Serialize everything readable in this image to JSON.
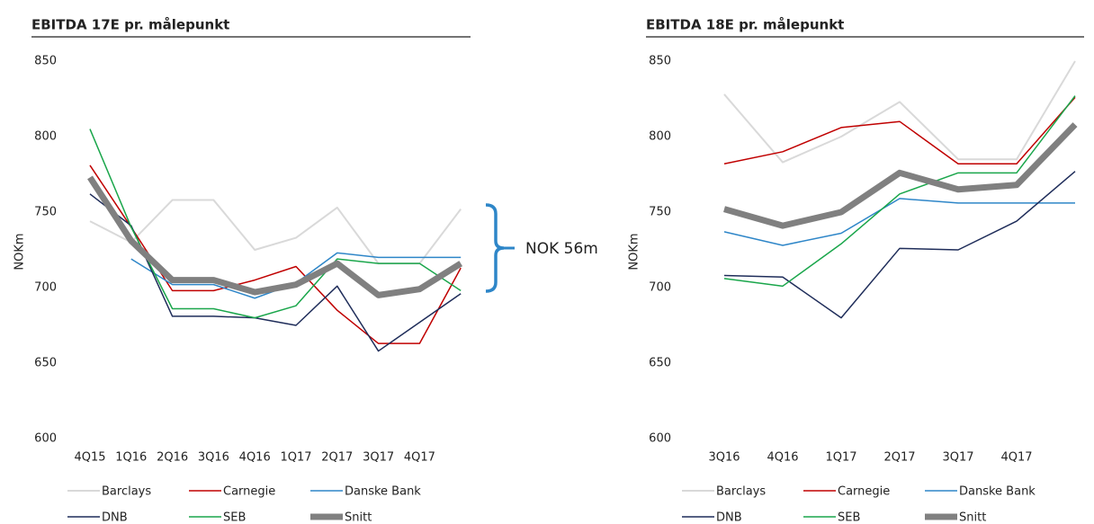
{
  "chart_data": [
    {
      "type": "line",
      "title": "EBITDA 17E pr. målepunkt",
      "y_label": "NOKm",
      "annotation": "NOK 56m",
      "categories": [
        "4Q15",
        "1Q16",
        "2Q16",
        "3Q16",
        "4Q16",
        "1Q17",
        "2Q17",
        "3Q17",
        "4Q17",
        null
      ],
      "ylim": [
        600,
        850
      ],
      "yticks": [
        600,
        650,
        700,
        750,
        800,
        850
      ],
      "grid": false,
      "series": [
        {
          "name": "Barclays",
          "color": "#d9d9d9",
          "width": 2,
          "values": [
            744,
            730,
            758,
            758,
            725,
            733,
            753,
            716,
            716,
            752
          ]
        },
        {
          "name": "Carnegie",
          "color": "#c00000",
          "width": 1.5,
          "values": [
            781,
            740,
            698,
            698,
            705,
            714,
            685,
            663,
            663,
            713
          ]
        },
        {
          "name": "Danske Bank",
          "color": "#2e86c8",
          "width": 1.5,
          "values": [
            null,
            719,
            702,
            702,
            693,
            703,
            723,
            720,
            720,
            720
          ]
        },
        {
          "name": "DNB",
          "color": "#1f2d5a",
          "width": 1.5,
          "values": [
            762,
            741,
            681,
            681,
            680,
            675,
            701,
            658,
            677,
            696
          ]
        },
        {
          "name": "SEB",
          "color": "#1aa64b",
          "width": 1.5,
          "values": [
            805,
            740,
            686,
            686,
            680,
            688,
            719,
            716,
            716,
            698
          ]
        },
        {
          "name": "Snitt",
          "color": "#808080",
          "width": 7,
          "values": [
            773,
            731,
            705,
            705,
            697,
            702,
            716,
            695,
            699,
            716
          ]
        }
      ]
    },
    {
      "type": "line",
      "title": "EBITDA 18E pr. målepunkt",
      "y_label": "NOKm",
      "categories": [
        "3Q16",
        "4Q16",
        "1Q17",
        "2Q17",
        "3Q17",
        "4Q17",
        null
      ],
      "ylim": [
        600,
        850
      ],
      "yticks": [
        600,
        650,
        700,
        750,
        800,
        850
      ],
      "grid": false,
      "series": [
        {
          "name": "Barclays",
          "color": "#d9d9d9",
          "width": 2,
          "values": [
            828,
            783,
            800,
            823,
            785,
            785,
            850
          ]
        },
        {
          "name": "Carnegie",
          "color": "#c00000",
          "width": 1.5,
          "values": [
            782,
            790,
            806,
            810,
            782,
            782,
            826
          ]
        },
        {
          "name": "Danske Bank",
          "color": "#2e86c8",
          "width": 1.5,
          "values": [
            737,
            728,
            736,
            759,
            756,
            756,
            756
          ]
        },
        {
          "name": "DNB",
          "color": "#1f2d5a",
          "width": 1.5,
          "values": [
            708,
            707,
            680,
            726,
            725,
            744,
            777
          ]
        },
        {
          "name": "SEB",
          "color": "#1aa64b",
          "width": 1.5,
          "values": [
            706,
            701,
            729,
            762,
            776,
            776,
            827
          ]
        },
        {
          "name": "Snitt",
          "color": "#808080",
          "width": 7,
          "values": [
            752,
            741,
            750,
            776,
            765,
            768,
            808
          ]
        }
      ]
    }
  ]
}
